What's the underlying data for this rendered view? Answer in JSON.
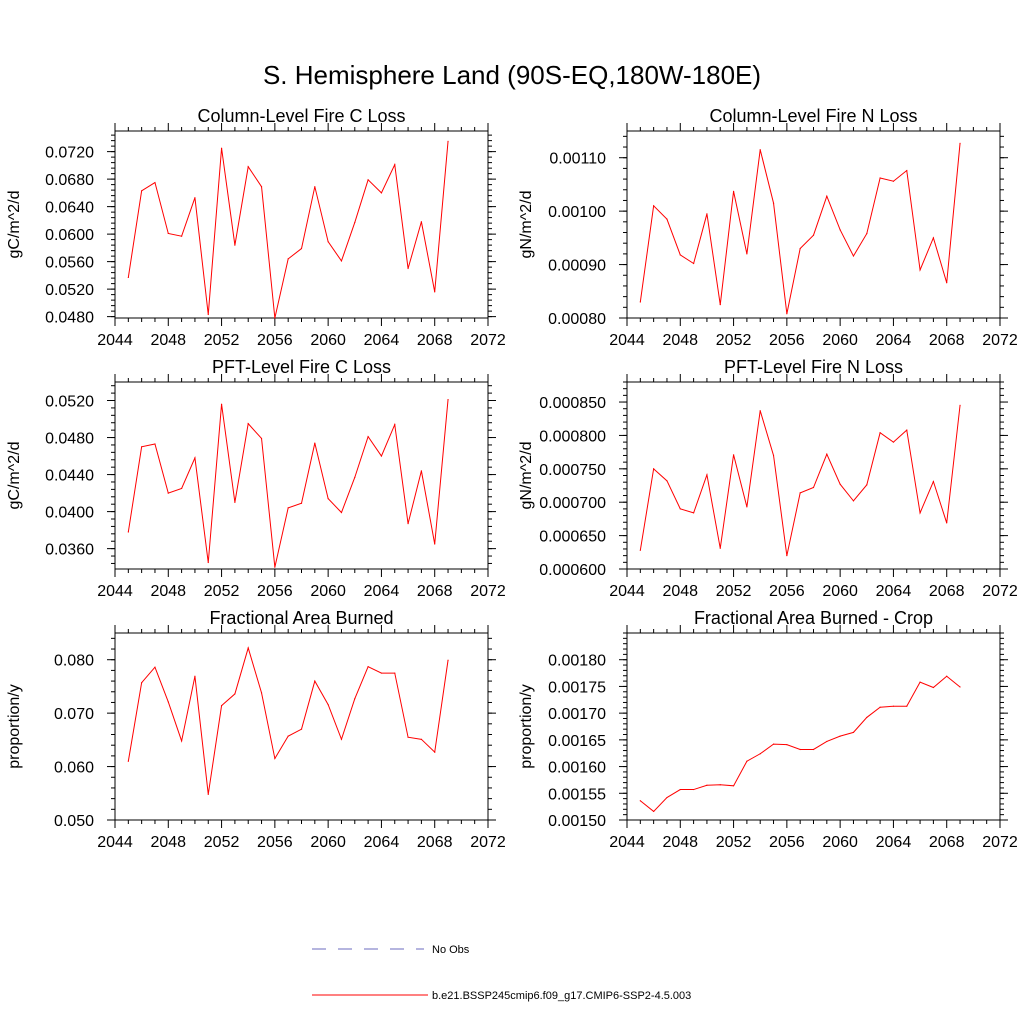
{
  "figure_title": "S. Hemisphere Land (90S-EQ,180W-180E)",
  "legend": {
    "obs_label": "No Obs",
    "obs_color": "#6b6bbf",
    "model_label": "b.e21.BSSP245cmip6.f09_g17.CMIP6-SSP2-4.5.003",
    "model_color": "#ff0000"
  },
  "chart_data": [
    {
      "type": "line",
      "title": "Column-Level Fire C Loss",
      "ylabel": "gC/m^2/d",
      "xlabel": "",
      "xlim": [
        2044,
        2072
      ],
      "ylim": [
        0.0478,
        0.075
      ],
      "xticks": [
        2044,
        2048,
        2052,
        2056,
        2060,
        2064,
        2068,
        2072
      ],
      "xtick_labels": [
        "2044",
        "2048",
        "2052",
        "2056",
        "2060",
        "2064",
        "2068",
        "2072"
      ],
      "yticks": [
        0.048,
        0.052,
        0.056,
        0.06,
        0.064,
        0.068,
        0.072
      ],
      "ytick_labels": [
        "0.0480",
        "0.0520",
        "0.0560",
        "0.0600",
        "0.0640",
        "0.0680",
        "0.0720"
      ],
      "x": [
        2045,
        2046,
        2047,
        2048,
        2049,
        2050,
        2051,
        2052,
        2053,
        2054,
        2055,
        2056,
        2057,
        2058,
        2059,
        2060,
        2061,
        2062,
        2063,
        2064,
        2065,
        2066,
        2067,
        2068,
        2069
      ],
      "series": [
        {
          "name": "b.e21.BSSP245cmip6.f09_g17.CMIP6-SSP2-4.5.003",
          "values": [
            0.0537,
            0.0663,
            0.0675,
            0.0601,
            0.0597,
            0.0653,
            0.0483,
            0.0725,
            0.0584,
            0.0698,
            0.0669,
            0.0478,
            0.0564,
            0.0579,
            0.0669,
            0.0589,
            0.0561,
            0.0617,
            0.0679,
            0.066,
            0.0701,
            0.055,
            0.0618,
            0.0516,
            0.0735
          ]
        }
      ]
    },
    {
      "type": "line",
      "title": "Column-Level Fire N Loss",
      "ylabel": "gN/m^2/d",
      "xlabel": "",
      "xlim": [
        2044,
        2072
      ],
      "ylim": [
        0.0008,
        0.00115
      ],
      "xticks": [
        2044,
        2048,
        2052,
        2056,
        2060,
        2064,
        2068,
        2072
      ],
      "xtick_labels": [
        "2044",
        "2048",
        "2052",
        "2056",
        "2060",
        "2064",
        "2068",
        "2072"
      ],
      "yticks": [
        0.0008,
        0.0009,
        0.001,
        0.0011
      ],
      "ytick_labels": [
        "0.00080",
        "0.00090",
        "0.00100",
        "0.00110"
      ],
      "x": [
        2045,
        2046,
        2047,
        2048,
        2049,
        2050,
        2051,
        2052,
        2053,
        2054,
        2055,
        2056,
        2057,
        2058,
        2059,
        2060,
        2061,
        2062,
        2063,
        2064,
        2065,
        2066,
        2067,
        2068,
        2069
      ],
      "series": [
        {
          "name": "b.e21.BSSP245cmip6.f09_g17.CMIP6-SSP2-4.5.003",
          "values": [
            0.00083,
            0.00101,
            0.000985,
            0.000918,
            0.000902,
            0.000995,
            0.000825,
            0.001037,
            0.00092,
            0.001115,
            0.001015,
            0.000808,
            0.00093,
            0.000955,
            0.001028,
            0.000965,
            0.000916,
            0.000958,
            0.001062,
            0.001056,
            0.001076,
            0.00089,
            0.00095,
            0.000866,
            0.001127
          ]
        }
      ]
    },
    {
      "type": "line",
      "title": "PFT-Level Fire C Loss",
      "ylabel": "gC/m^2/d",
      "xlabel": "",
      "xlim": [
        2044,
        2072
      ],
      "ylim": [
        0.0338,
        0.054
      ],
      "xticks": [
        2044,
        2048,
        2052,
        2056,
        2060,
        2064,
        2068,
        2072
      ],
      "xtick_labels": [
        "2044",
        "2048",
        "2052",
        "2056",
        "2060",
        "2064",
        "2068",
        "2072"
      ],
      "yticks": [
        0.036,
        0.04,
        0.044,
        0.048,
        0.052
      ],
      "ytick_labels": [
        "0.0360",
        "0.0400",
        "0.0440",
        "0.0480",
        "0.0520"
      ],
      "x": [
        2045,
        2046,
        2047,
        2048,
        2049,
        2050,
        2051,
        2052,
        2053,
        2054,
        2055,
        2056,
        2057,
        2058,
        2059,
        2060,
        2061,
        2062,
        2063,
        2064,
        2065,
        2066,
        2067,
        2068,
        2069
      ],
      "series": [
        {
          "name": "b.e21.BSSP245cmip6.f09_g17.CMIP6-SSP2-4.5.003",
          "values": [
            0.0378,
            0.047,
            0.0473,
            0.042,
            0.0425,
            0.0458,
            0.0345,
            0.0516,
            0.041,
            0.0495,
            0.0479,
            0.034,
            0.0404,
            0.0409,
            0.0474,
            0.0414,
            0.0399,
            0.0437,
            0.0481,
            0.046,
            0.0494,
            0.0387,
            0.0444,
            0.0365,
            0.0521
          ]
        }
      ]
    },
    {
      "type": "line",
      "title": "PFT-Level Fire N Loss",
      "ylabel": "gN/m^2/d",
      "xlabel": "",
      "xlim": [
        2044,
        2072
      ],
      "ylim": [
        0.0006,
        0.00088
      ],
      "xticks": [
        2044,
        2048,
        2052,
        2056,
        2060,
        2064,
        2068,
        2072
      ],
      "xtick_labels": [
        "2044",
        "2048",
        "2052",
        "2056",
        "2060",
        "2064",
        "2068",
        "2072"
      ],
      "yticks": [
        0.0006,
        0.00065,
        0.0007,
        0.00075,
        0.0008,
        0.00085
      ],
      "ytick_labels": [
        "0.000600",
        "0.000650",
        "0.000700",
        "0.000750",
        "0.000800",
        "0.000850"
      ],
      "x": [
        2045,
        2046,
        2047,
        2048,
        2049,
        2050,
        2051,
        2052,
        2053,
        2054,
        2055,
        2056,
        2057,
        2058,
        2059,
        2060,
        2061,
        2062,
        2063,
        2064,
        2065,
        2066,
        2067,
        2068,
        2069
      ],
      "series": [
        {
          "name": "b.e21.BSSP245cmip6.f09_g17.CMIP6-SSP2-4.5.003",
          "values": [
            0.000628,
            0.00075,
            0.000732,
            0.00069,
            0.000684,
            0.000741,
            0.000631,
            0.000771,
            0.000693,
            0.000837,
            0.00077,
            0.00062,
            0.000714,
            0.000722,
            0.000772,
            0.000727,
            0.000702,
            0.000726,
            0.000804,
            0.00079,
            0.000808,
            0.000684,
            0.000731,
            0.000669,
            0.000845
          ]
        }
      ]
    },
    {
      "type": "line",
      "title": "Fractional Area Burned",
      "ylabel": "proportion/y",
      "xlabel": "",
      "xlim": [
        2044,
        2072
      ],
      "ylim": [
        0.05,
        0.085
      ],
      "xticks": [
        2044,
        2048,
        2052,
        2056,
        2060,
        2064,
        2068,
        2072
      ],
      "xtick_labels": [
        "2044",
        "2048",
        "2052",
        "2056",
        "2060",
        "2064",
        "2068",
        "2072"
      ],
      "yticks": [
        0.05,
        0.06,
        0.07,
        0.08
      ],
      "ytick_labels": [
        "0.050",
        "0.060",
        "0.070",
        "0.080"
      ],
      "x": [
        2045,
        2046,
        2047,
        2048,
        2049,
        2050,
        2051,
        2052,
        2053,
        2054,
        2055,
        2056,
        2057,
        2058,
        2059,
        2060,
        2061,
        2062,
        2063,
        2064,
        2065,
        2066,
        2067,
        2068,
        2069
      ],
      "series": [
        {
          "name": "b.e21.BSSP245cmip6.f09_g17.CMIP6-SSP2-4.5.003",
          "values": [
            0.061,
            0.0757,
            0.0786,
            0.0721,
            0.0648,
            0.0769,
            0.0548,
            0.0714,
            0.0736,
            0.0822,
            0.0738,
            0.0615,
            0.0657,
            0.067,
            0.076,
            0.0716,
            0.0651,
            0.0727,
            0.0787,
            0.0775,
            0.0775,
            0.0655,
            0.0651,
            0.0627,
            0.0799
          ]
        }
      ]
    },
    {
      "type": "line",
      "title": "Fractional Area Burned - Crop",
      "ylabel": "proportion/y",
      "xlabel": "",
      "xlim": [
        2044,
        2072
      ],
      "ylim": [
        0.0015,
        0.00185
      ],
      "xticks": [
        2044,
        2048,
        2052,
        2056,
        2060,
        2064,
        2068,
        2072
      ],
      "xtick_labels": [
        "2044",
        "2048",
        "2052",
        "2056",
        "2060",
        "2064",
        "2068",
        "2072"
      ],
      "yticks": [
        0.0015,
        0.00155,
        0.0016,
        0.00165,
        0.0017,
        0.00175,
        0.0018
      ],
      "ytick_labels": [
        "0.00150",
        "0.00155",
        "0.00160",
        "0.00165",
        "0.00170",
        "0.00175",
        "0.00180"
      ],
      "x": [
        2045,
        2046,
        2047,
        2048,
        2049,
        2050,
        2051,
        2052,
        2053,
        2054,
        2055,
        2056,
        2057,
        2058,
        2059,
        2060,
        2061,
        2062,
        2063,
        2064,
        2065,
        2066,
        2067,
        2068,
        2069
      ],
      "series": [
        {
          "name": "b.e21.BSSP245cmip6.f09_g17.CMIP6-SSP2-4.5.003",
          "values": [
            0.001536,
            0.001516,
            0.001542,
            0.001557,
            0.001557,
            0.001565,
            0.001566,
            0.001564,
            0.00161,
            0.001624,
            0.001642,
            0.001641,
            0.001632,
            0.001632,
            0.001647,
            0.001657,
            0.001664,
            0.001692,
            0.001711,
            0.001713,
            0.001713,
            0.001758,
            0.001748,
            0.001769,
            0.001749
          ]
        }
      ]
    }
  ]
}
